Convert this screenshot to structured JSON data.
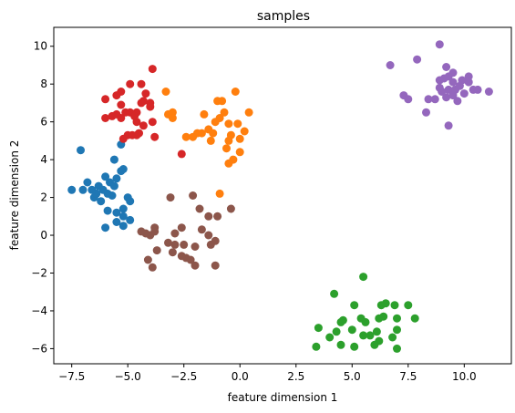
{
  "chart_data": {
    "type": "scatter",
    "title": "samples",
    "xlabel": "feature dimension 1",
    "ylabel": "feature dimension 2",
    "xlim": [
      -8.3,
      12.1
    ],
    "ylim": [
      -6.8,
      11.0
    ],
    "xticks": [
      -7.5,
      -5.0,
      -2.5,
      0.0,
      2.5,
      5.0,
      7.5,
      10.0
    ],
    "xtick_labels": [
      "−7.5",
      "−5.0",
      "−2.5",
      "0.0",
      "2.5",
      "5.0",
      "7.5",
      "10.0"
    ],
    "yticks": [
      -6,
      -4,
      -2,
      0,
      2,
      4,
      6,
      8,
      10
    ],
    "ytick_labels": [
      "−6",
      "−4",
      "−2",
      "0",
      "2",
      "4",
      "6",
      "8",
      "10"
    ],
    "grid": false,
    "series": [
      {
        "color": "#1f77b4",
        "points": [
          [
            -7.1,
            4.5
          ],
          [
            -5.3,
            4.8
          ],
          [
            -5.6,
            4.0
          ],
          [
            -5.2,
            3.5
          ],
          [
            -6.0,
            3.1
          ],
          [
            -5.8,
            2.8
          ],
          [
            -6.3,
            2.6
          ],
          [
            -7.5,
            2.4
          ],
          [
            -7.0,
            2.4
          ],
          [
            -6.8,
            2.8
          ],
          [
            -6.6,
            2.4
          ],
          [
            -6.5,
            2.0
          ],
          [
            -6.2,
            1.8
          ],
          [
            -5.9,
            2.2
          ],
          [
            -5.6,
            2.6
          ],
          [
            -5.2,
            1.4
          ],
          [
            -5.0,
            2.0
          ],
          [
            -5.9,
            1.3
          ],
          [
            -5.5,
            1.2
          ],
          [
            -5.2,
            1.0
          ],
          [
            -4.9,
            0.8
          ],
          [
            -5.5,
            0.7
          ],
          [
            -6.0,
            0.4
          ],
          [
            -5.2,
            0.5
          ],
          [
            -6.4,
            2.2
          ],
          [
            -5.3,
            3.4
          ],
          [
            -5.5,
            3.0
          ],
          [
            -4.9,
            1.8
          ],
          [
            -5.7,
            2.1
          ],
          [
            -6.1,
            2.4
          ]
        ]
      },
      {
        "color": "#ff7f0e",
        "points": [
          [
            -3.3,
            7.6
          ],
          [
            -1.0,
            7.1
          ],
          [
            -0.8,
            7.1
          ],
          [
            0.4,
            6.5
          ],
          [
            -3.0,
            6.5
          ],
          [
            -3.2,
            6.4
          ],
          [
            -3.0,
            6.2
          ],
          [
            -0.9,
            6.2
          ],
          [
            -0.5,
            5.9
          ],
          [
            -0.1,
            5.9
          ],
          [
            -1.7,
            5.4
          ],
          [
            -1.9,
            5.4
          ],
          [
            -2.1,
            5.2
          ],
          [
            -2.4,
            5.2
          ],
          [
            -1.4,
            5.6
          ],
          [
            -1.2,
            5.4
          ],
          [
            -0.4,
            5.3
          ],
          [
            0.2,
            5.5
          ],
          [
            0.0,
            5.1
          ],
          [
            -0.5,
            5.0
          ],
          [
            -0.6,
            4.6
          ],
          [
            0.0,
            4.4
          ],
          [
            -0.3,
            4.0
          ],
          [
            -0.5,
            3.8
          ],
          [
            -0.9,
            2.2
          ],
          [
            -1.6,
            6.4
          ],
          [
            -1.1,
            6.0
          ],
          [
            -1.3,
            5.0
          ],
          [
            -0.7,
            6.5
          ],
          [
            -0.2,
            7.6
          ]
        ]
      },
      {
        "color": "#2ca02c",
        "points": [
          [
            5.5,
            -2.2
          ],
          [
            4.2,
            -3.1
          ],
          [
            5.1,
            -3.7
          ],
          [
            6.3,
            -3.7
          ],
          [
            6.9,
            -3.7
          ],
          [
            6.5,
            -3.6
          ],
          [
            7.0,
            -4.4
          ],
          [
            7.5,
            -3.7
          ],
          [
            7.8,
            -4.4
          ],
          [
            4.6,
            -4.5
          ],
          [
            4.5,
            -4.6
          ],
          [
            5.4,
            -4.4
          ],
          [
            5.6,
            -4.6
          ],
          [
            6.4,
            -4.3
          ],
          [
            6.2,
            -4.4
          ],
          [
            3.5,
            -4.9
          ],
          [
            4.3,
            -5.1
          ],
          [
            5.0,
            -5.0
          ],
          [
            5.5,
            -5.3
          ],
          [
            5.8,
            -5.3
          ],
          [
            6.1,
            -5.1
          ],
          [
            7.0,
            -5.0
          ],
          [
            6.8,
            -5.4
          ],
          [
            4.0,
            -5.4
          ],
          [
            6.2,
            -5.6
          ],
          [
            4.5,
            -5.8
          ],
          [
            5.1,
            -5.9
          ],
          [
            6.0,
            -5.8
          ],
          [
            3.4,
            -5.9
          ],
          [
            7.0,
            -6.0
          ]
        ]
      },
      {
        "color": "#d62728",
        "points": [
          [
            -3.9,
            8.8
          ],
          [
            -4.9,
            8.0
          ],
          [
            -4.4,
            8.0
          ],
          [
            -5.3,
            7.6
          ],
          [
            -4.2,
            7.5
          ],
          [
            -6.0,
            7.2
          ],
          [
            -4.3,
            7.1
          ],
          [
            -4.0,
            7.0
          ],
          [
            -5.3,
            6.9
          ],
          [
            -4.6,
            6.5
          ],
          [
            -5.1,
            6.5
          ],
          [
            -4.9,
            6.5
          ],
          [
            -5.7,
            6.3
          ],
          [
            -6.0,
            6.2
          ],
          [
            -5.3,
            6.2
          ],
          [
            -4.6,
            6.0
          ],
          [
            -4.3,
            5.8
          ],
          [
            -3.9,
            6.0
          ],
          [
            -5.0,
            5.3
          ],
          [
            -4.8,
            5.3
          ],
          [
            -4.6,
            5.3
          ],
          [
            -4.5,
            5.4
          ],
          [
            -3.8,
            5.2
          ],
          [
            -5.2,
            5.1
          ],
          [
            -2.6,
            4.3
          ],
          [
            -4.4,
            7.0
          ],
          [
            -5.5,
            6.4
          ],
          [
            -4.0,
            6.8
          ],
          [
            -4.7,
            6.3
          ],
          [
            -5.5,
            7.4
          ]
        ]
      },
      {
        "color": "#9467bd",
        "points": [
          [
            8.9,
            10.1
          ],
          [
            6.7,
            9.0
          ],
          [
            7.9,
            9.3
          ],
          [
            9.2,
            8.9
          ],
          [
            9.5,
            8.6
          ],
          [
            9.9,
            8.2
          ],
          [
            10.2,
            8.4
          ],
          [
            8.9,
            8.2
          ],
          [
            9.5,
            8.1
          ],
          [
            7.3,
            7.4
          ],
          [
            7.5,
            7.2
          ],
          [
            8.4,
            7.2
          ],
          [
            8.7,
            7.2
          ],
          [
            9.0,
            7.6
          ],
          [
            9.3,
            7.7
          ],
          [
            9.6,
            7.7
          ],
          [
            10.0,
            7.5
          ],
          [
            10.6,
            7.7
          ],
          [
            11.1,
            7.6
          ],
          [
            8.3,
            6.5
          ],
          [
            9.3,
            5.8
          ],
          [
            9.2,
            7.3
          ],
          [
            9.7,
            7.1
          ],
          [
            10.4,
            7.7
          ],
          [
            9.1,
            8.3
          ],
          [
            9.8,
            7.9
          ],
          [
            9.3,
            8.4
          ],
          [
            8.9,
            7.8
          ],
          [
            9.5,
            7.4
          ],
          [
            10.2,
            8.1
          ]
        ]
      },
      {
        "color": "#8c564b",
        "points": [
          [
            -3.1,
            2.0
          ],
          [
            -2.1,
            2.1
          ],
          [
            -0.4,
            1.4
          ],
          [
            -1.8,
            1.4
          ],
          [
            -1.4,
            1.0
          ],
          [
            -1.0,
            1.0
          ],
          [
            -3.8,
            0.4
          ],
          [
            -2.6,
            0.4
          ],
          [
            -2.9,
            0.1
          ],
          [
            -2.5,
            -0.5
          ],
          [
            -4.4,
            0.2
          ],
          [
            -4.2,
            0.1
          ],
          [
            -4.0,
            0.0
          ],
          [
            -3.8,
            0.2
          ],
          [
            -1.7,
            0.3
          ],
          [
            -1.4,
            0.0
          ],
          [
            -1.1,
            -0.3
          ],
          [
            -1.3,
            -0.5
          ],
          [
            -2.0,
            -0.6
          ],
          [
            -2.9,
            -0.5
          ],
          [
            -3.2,
            -0.4
          ],
          [
            -3.0,
            -0.9
          ],
          [
            -3.7,
            -0.8
          ],
          [
            -4.1,
            -1.3
          ],
          [
            -2.4,
            -1.2
          ],
          [
            -2.2,
            -1.3
          ],
          [
            -2.0,
            -1.6
          ],
          [
            -3.9,
            -1.7
          ],
          [
            -1.1,
            -1.6
          ],
          [
            -2.6,
            -1.1
          ]
        ]
      }
    ]
  }
}
